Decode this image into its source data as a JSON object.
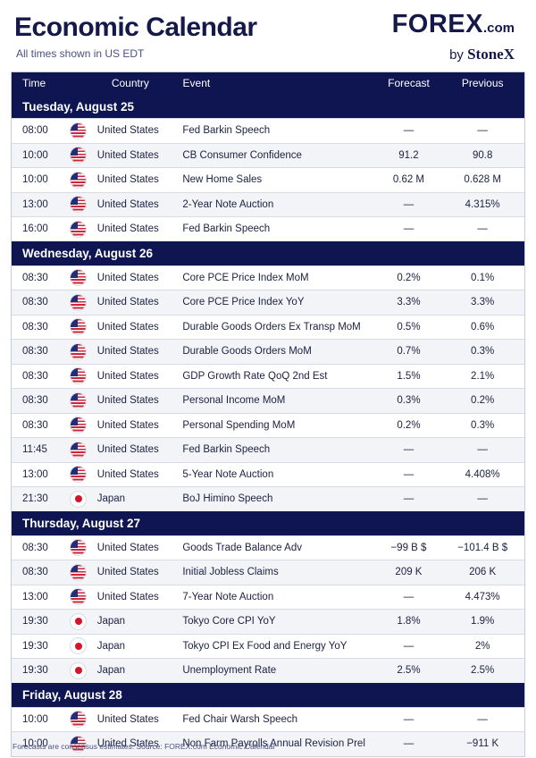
{
  "header": {
    "title": "Economic Calendar",
    "subtitle": "All times shown in US EDT",
    "brand_main": "FOREX",
    "brand_suffix": ".com",
    "brand_by": "by",
    "brand_stonex": "StoneX"
  },
  "columns": {
    "time": "Time",
    "country": "Country",
    "event": "Event",
    "forecast": "Forecast",
    "previous": "Previous"
  },
  "days": [
    {
      "label": "Tuesday, August 25",
      "rows": [
        {
          "time": "08:00",
          "flag": "us-flag-icon",
          "country": "United States",
          "event": "Fed Barkin Speech",
          "forecast": "—",
          "previous": "—"
        },
        {
          "time": "10:00",
          "flag": "us-flag-icon",
          "country": "United States",
          "event": "CB Consumer Confidence",
          "forecast": "91.2",
          "previous": "90.8"
        },
        {
          "time": "10:00",
          "flag": "us-flag-icon",
          "country": "United States",
          "event": "New Home Sales",
          "forecast": "0.62 M",
          "previous": "0.628 M"
        },
        {
          "time": "13:00",
          "flag": "us-flag-icon",
          "country": "United States",
          "event": "2-Year Note Auction",
          "forecast": "—",
          "previous": "4.315%"
        },
        {
          "time": "16:00",
          "flag": "us-flag-icon",
          "country": "United States",
          "event": "Fed Barkin Speech",
          "forecast": "—",
          "previous": "—"
        }
      ]
    },
    {
      "label": "Wednesday, August 26",
      "rows": [
        {
          "time": "08:30",
          "flag": "us-flag-icon",
          "country": "United States",
          "event": "Core PCE Price Index MoM",
          "forecast": "0.2%",
          "previous": "0.1%"
        },
        {
          "time": "08:30",
          "flag": "us-flag-icon",
          "country": "United States",
          "event": "Core PCE Price Index YoY",
          "forecast": "3.3%",
          "previous": "3.3%"
        },
        {
          "time": "08:30",
          "flag": "us-flag-icon",
          "country": "United States",
          "event": "Durable Goods Orders Ex Transp MoM",
          "forecast": "0.5%",
          "previous": "0.6%"
        },
        {
          "time": "08:30",
          "flag": "us-flag-icon",
          "country": "United States",
          "event": "Durable Goods Orders MoM",
          "forecast": "0.7%",
          "previous": "0.3%"
        },
        {
          "time": "08:30",
          "flag": "us-flag-icon",
          "country": "United States",
          "event": "GDP Growth Rate QoQ 2nd Est",
          "forecast": "1.5%",
          "previous": "2.1%"
        },
        {
          "time": "08:30",
          "flag": "us-flag-icon",
          "country": "United States",
          "event": "Personal Income MoM",
          "forecast": "0.3%",
          "previous": "0.2%"
        },
        {
          "time": "08:30",
          "flag": "us-flag-icon",
          "country": "United States",
          "event": "Personal Spending MoM",
          "forecast": "0.2%",
          "previous": "0.3%"
        },
        {
          "time": "11:45",
          "flag": "us-flag-icon",
          "country": "United States",
          "event": "Fed Barkin Speech",
          "forecast": "—",
          "previous": "—"
        },
        {
          "time": "13:00",
          "flag": "us-flag-icon",
          "country": "United States",
          "event": "5-Year Note Auction",
          "forecast": "—",
          "previous": "4.408%"
        },
        {
          "time": "21:30",
          "flag": "japan-flag-icon",
          "country": "Japan",
          "event": "BoJ Himino Speech",
          "forecast": "—",
          "previous": "—"
        }
      ]
    },
    {
      "label": "Thursday, August 27",
      "rows": [
        {
          "time": "08:30",
          "flag": "us-flag-icon",
          "country": "United States",
          "event": "Goods Trade Balance Adv",
          "forecast": "−99 B $",
          "previous": "−101.4 B $"
        },
        {
          "time": "08:30",
          "flag": "us-flag-icon",
          "country": "United States",
          "event": "Initial Jobless Claims",
          "forecast": "209 K",
          "previous": "206 K"
        },
        {
          "time": "13:00",
          "flag": "us-flag-icon",
          "country": "United States",
          "event": "7-Year Note Auction",
          "forecast": "—",
          "previous": "4.473%"
        },
        {
          "time": "19:30",
          "flag": "japan-flag-icon",
          "country": "Japan",
          "event": "Tokyo Core CPI YoY",
          "forecast": "1.8%",
          "previous": "1.9%"
        },
        {
          "time": "19:30",
          "flag": "japan-flag-icon",
          "country": "Japan",
          "event": "Tokyo CPI Ex Food and Energy YoY",
          "forecast": "—",
          "previous": "2%"
        },
        {
          "time": "19:30",
          "flag": "japan-flag-icon",
          "country": "Japan",
          "event": "Unemployment Rate",
          "forecast": "2.5%",
          "previous": "2.5%"
        }
      ]
    },
    {
      "label": "Friday, August 28",
      "rows": [
        {
          "time": "10:00",
          "flag": "us-flag-icon",
          "country": "United States",
          "event": "Fed Chair Warsh Speech",
          "forecast": "—",
          "previous": "—"
        },
        {
          "time": "10:00",
          "flag": "us-flag-icon",
          "country": "United States",
          "event": "Non Farm Payrolls Annual Revision Prel",
          "forecast": "—",
          "previous": "−911 K"
        }
      ]
    }
  ],
  "footer": "Forecasts are consensus estimates. Source: FOREX.com Economic Calendar"
}
